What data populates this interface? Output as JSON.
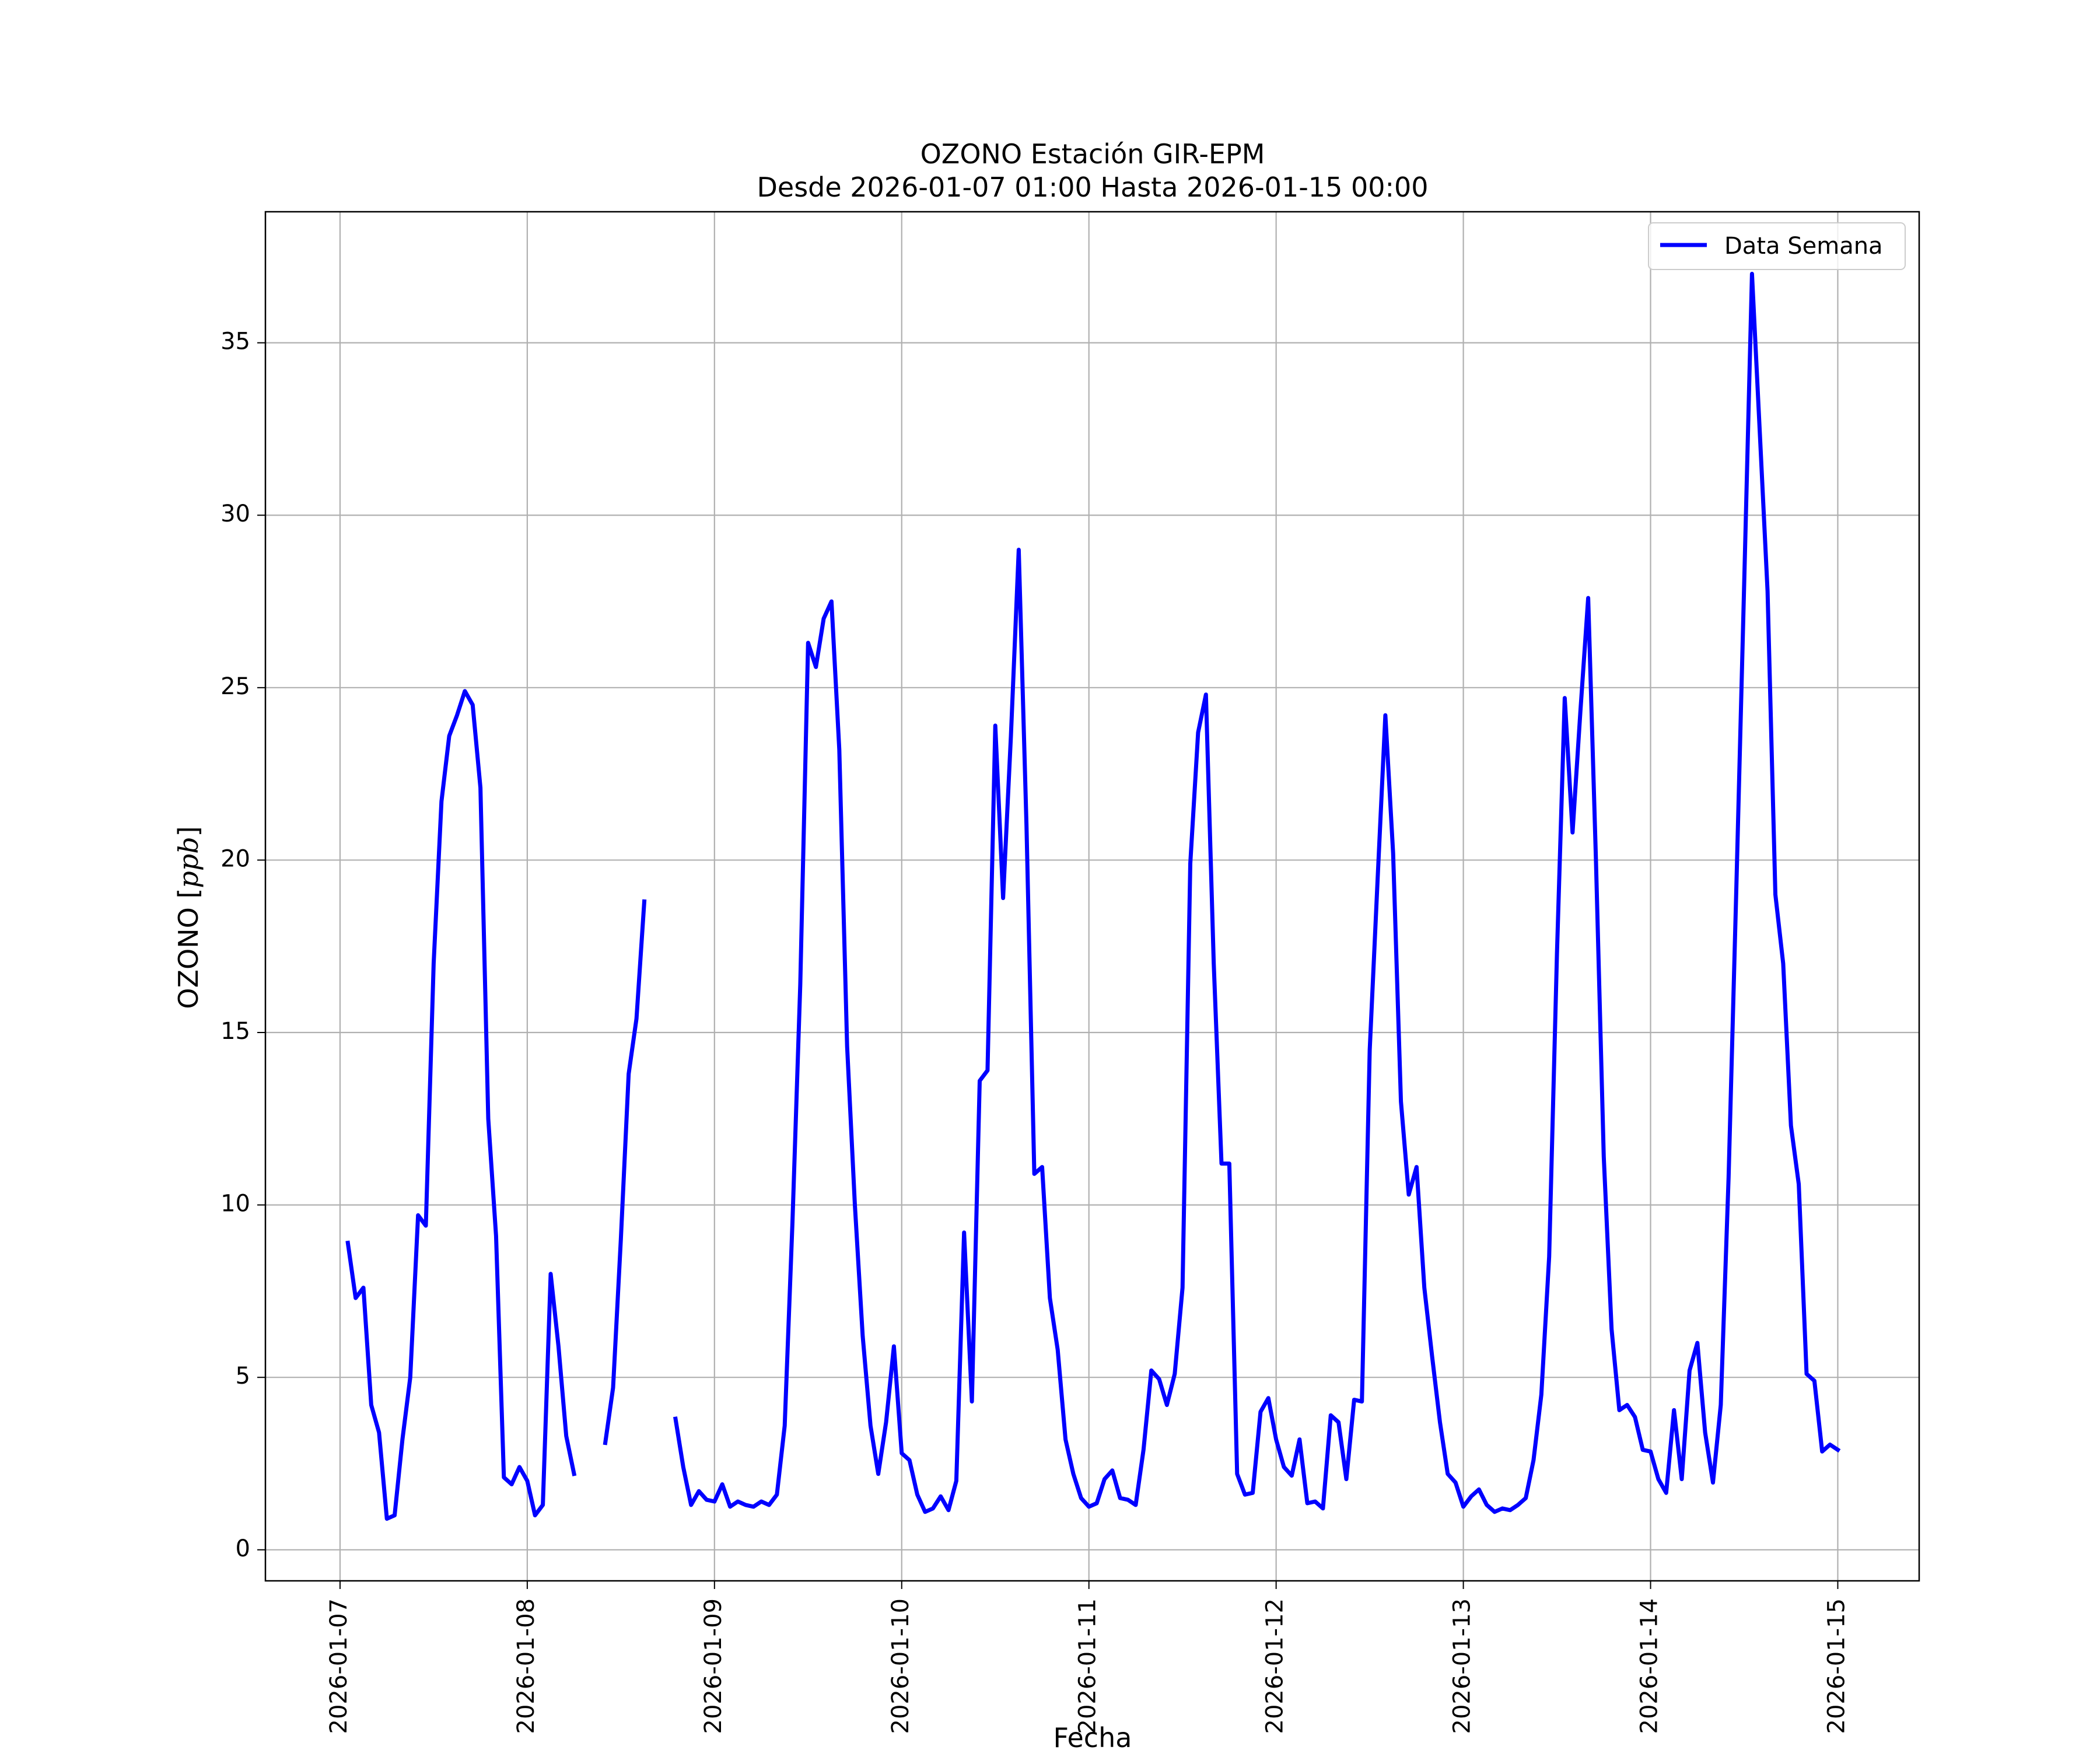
{
  "chart_data": {
    "type": "line",
    "title": "OZONO Estación GIR-EPM",
    "subtitle": "Desde 2026-01-07 01:00 Hasta 2026-01-15 00:00",
    "xlabel": "Fecha",
    "ylabel_text": "OZONO [",
    "ylabel_unit": "ppb",
    "ylabel_close": "]",
    "xlim": [
      "2026-01-06 14:26",
      "2026-01-15 10:26"
    ],
    "ylim": [
      -0.9,
      38.8
    ],
    "grid": true,
    "legend_position": "upper right",
    "x_ticks": [
      "2026-01-07",
      "2026-01-08",
      "2026-01-09",
      "2026-01-10",
      "2026-01-11",
      "2026-01-12",
      "2026-01-13",
      "2026-01-14",
      "2026-01-15"
    ],
    "y_ticks": [
      0,
      5,
      10,
      15,
      20,
      25,
      30,
      35
    ],
    "colors": {
      "line": "#0000ff",
      "grid": "#b0b0b0",
      "axes": "#000000"
    },
    "series": [
      {
        "name": "Data Semana",
        "color": "#0000ff",
        "points": [
          [
            "2026-01-07 01:00",
            8.9
          ],
          [
            "2026-01-07 02:00",
            7.3
          ],
          [
            "2026-01-07 03:00",
            7.6
          ],
          [
            "2026-01-07 04:00",
            4.2
          ],
          [
            "2026-01-07 05:00",
            3.4
          ],
          [
            "2026-01-07 06:00",
            0.9
          ],
          [
            "2026-01-07 07:00",
            1.0
          ],
          [
            "2026-01-07 08:00",
            3.2
          ],
          [
            "2026-01-07 09:00",
            5.0
          ],
          [
            "2026-01-07 10:00",
            9.7
          ],
          [
            "2026-01-07 11:00",
            9.4
          ],
          [
            "2026-01-07 12:00",
            17.0
          ],
          [
            "2026-01-07 13:00",
            21.7
          ],
          [
            "2026-01-07 14:00",
            23.6
          ],
          [
            "2026-01-07 15:00",
            24.2
          ],
          [
            "2026-01-07 16:00",
            24.9
          ],
          [
            "2026-01-07 17:00",
            24.5
          ],
          [
            "2026-01-07 18:00",
            22.1
          ],
          [
            "2026-01-07 19:00",
            12.5
          ],
          [
            "2026-01-07 20:00",
            9.1
          ],
          [
            "2026-01-07 21:00",
            2.1
          ],
          [
            "2026-01-07 22:00",
            1.9
          ],
          [
            "2026-01-07 23:00",
            2.4
          ],
          [
            "2026-01-08 00:00",
            2.0
          ],
          [
            "2026-01-08 01:00",
            1.0
          ],
          [
            "2026-01-08 02:00",
            1.3
          ],
          [
            "2026-01-08 03:00",
            8.0
          ],
          [
            "2026-01-08 04:00",
            5.9
          ],
          [
            "2026-01-08 05:00",
            3.3
          ],
          [
            "2026-01-08 06:00",
            2.2
          ],
          [
            "2026-01-08 07:00",
            null
          ],
          [
            "2026-01-08 08:00",
            null
          ],
          [
            "2026-01-08 09:00",
            null
          ],
          [
            "2026-01-08 10:00",
            3.1
          ],
          [
            "2026-01-08 11:00",
            4.7
          ],
          [
            "2026-01-08 12:00",
            9.0
          ],
          [
            "2026-01-08 13:00",
            13.8
          ],
          [
            "2026-01-08 14:00",
            15.4
          ],
          [
            "2026-01-08 15:00",
            18.8
          ],
          [
            "2026-01-08 16:00",
            null
          ],
          [
            "2026-01-08 17:00",
            null
          ],
          [
            "2026-01-08 18:00",
            null
          ],
          [
            "2026-01-08 19:00",
            null
          ],
          [
            "2026-01-08 20:00",
            null
          ],
          [
            "2026-01-08 21:00",
            null
          ],
          [
            "2026-01-08 22:00",
            null
          ],
          [
            "2026-01-08 23:00",
            null
          ],
          [
            "2026-01-09 00:00",
            null
          ],
          [
            "2026-01-09 01:00",
            null
          ],
          [
            "2026-01-09 02:00",
            null
          ],
          [
            "2026-01-09 03:00",
            null
          ],
          [
            "2026-01-09 04:00",
            null
          ],
          [
            "2026-01-09 05:00",
            null
          ],
          [
            "2026-01-09 06:00",
            null
          ],
          [
            "2026-01-08 19:00",
            3.8
          ],
          [
            "2026-01-08 20:00",
            2.4
          ],
          [
            "2026-01-08 21:00",
            1.3
          ],
          [
            "2026-01-08 22:00",
            1.7
          ],
          [
            "2026-01-08 23:00",
            1.45
          ],
          [
            "2026-01-09 00:00",
            1.4
          ],
          [
            "2026-01-09 01:00",
            1.9
          ],
          [
            "2026-01-09 02:00",
            1.25
          ],
          [
            "2026-01-09 03:00",
            1.4
          ],
          [
            "2026-01-09 04:00",
            1.3
          ],
          [
            "2026-01-09 05:00",
            1.25
          ],
          [
            "2026-01-09 06:00",
            1.4
          ],
          [
            "2026-01-09 07:00",
            1.3
          ],
          [
            "2026-01-09 08:00",
            1.6
          ],
          [
            "2026-01-09 09:00",
            3.6
          ],
          [
            "2026-01-09 10:00",
            9.5
          ],
          [
            "2026-01-09 11:00",
            16.4
          ],
          [
            "2026-01-09 12:00",
            26.3
          ],
          [
            "2026-01-09 13:00",
            25.6
          ],
          [
            "2026-01-09 14:00",
            27.0
          ],
          [
            "2026-01-09 15:00",
            27.5
          ],
          [
            "2026-01-09 16:00",
            23.2
          ],
          [
            "2026-01-09 17:00",
            14.6
          ],
          [
            "2026-01-09 18:00",
            10.0
          ],
          [
            "2026-01-09 19:00",
            6.2
          ],
          [
            "2026-01-09 20:00",
            3.6
          ],
          [
            "2026-01-09 21:00",
            2.2
          ],
          [
            "2026-01-09 22:00",
            3.7
          ],
          [
            "2026-01-09 23:00",
            5.9
          ],
          [
            "2026-01-10 00:00",
            2.8
          ],
          [
            "2026-01-10 01:00",
            2.6
          ],
          [
            "2026-01-10 02:00",
            1.6
          ],
          [
            "2026-01-10 03:00",
            1.1
          ],
          [
            "2026-01-10 04:00",
            1.2
          ],
          [
            "2026-01-10 05:00",
            1.55
          ],
          [
            "2026-01-10 06:00",
            1.15
          ],
          [
            "2026-01-10 07:00",
            2.0
          ],
          [
            "2026-01-10 08:00",
            9.2
          ],
          [
            "2026-01-10 09:00",
            4.3
          ],
          [
            "2026-01-10 10:00",
            13.6
          ],
          [
            "2026-01-10 11:00",
            13.9
          ],
          [
            "2026-01-10 12:00",
            23.9
          ],
          [
            "2026-01-10 13:00",
            18.9
          ],
          [
            "2026-01-10 14:00",
            23.6
          ],
          [
            "2026-01-10 15:00",
            29.0
          ],
          [
            "2026-01-10 16:00",
            21.0
          ],
          [
            "2026-01-10 17:00",
            10.9
          ],
          [
            "2026-01-10 18:00",
            11.1
          ],
          [
            "2026-01-10 19:00",
            7.3
          ],
          [
            "2026-01-10 20:00",
            5.8
          ],
          [
            "2026-01-10 21:00",
            3.2
          ],
          [
            "2026-01-10 22:00",
            2.2
          ],
          [
            "2026-01-10 23:00",
            1.5
          ],
          [
            "2026-01-11 00:00",
            1.25
          ],
          [
            "2026-01-11 01:00",
            1.35
          ],
          [
            "2026-01-11 02:00",
            2.05
          ],
          [
            "2026-01-11 03:00",
            2.3
          ],
          [
            "2026-01-11 04:00",
            1.5
          ],
          [
            "2026-01-11 05:00",
            1.45
          ],
          [
            "2026-01-11 06:00",
            1.3
          ],
          [
            "2026-01-11 07:00",
            2.9
          ],
          [
            "2026-01-11 08:00",
            5.2
          ],
          [
            "2026-01-11 09:00",
            4.95
          ],
          [
            "2026-01-11 10:00",
            4.2
          ],
          [
            "2026-01-11 11:00",
            5.1
          ],
          [
            "2026-01-11 12:00",
            7.6
          ],
          [
            "2026-01-11 13:00",
            19.9
          ],
          [
            "2026-01-11 14:00",
            23.7
          ],
          [
            "2026-01-11 15:00",
            24.8
          ],
          [
            "2026-01-11 16:00",
            17.0
          ],
          [
            "2026-01-11 17:00",
            11.2
          ],
          [
            "2026-01-11 18:00",
            11.2
          ],
          [
            "2026-01-11 19:00",
            2.2
          ],
          [
            "2026-01-11 20:00",
            1.6
          ],
          [
            "2026-01-11 21:00",
            1.65
          ],
          [
            "2026-01-11 22:00",
            4.0
          ],
          [
            "2026-01-11 23:00",
            4.4
          ],
          [
            "2026-01-12 00:00",
            3.2
          ],
          [
            "2026-01-12 01:00",
            2.4
          ],
          [
            "2026-01-12 02:00",
            2.15
          ],
          [
            "2026-01-12 03:00",
            3.2
          ],
          [
            "2026-01-12 04:00",
            1.35
          ],
          [
            "2026-01-12 05:00",
            1.4
          ],
          [
            "2026-01-12 06:00",
            1.2
          ],
          [
            "2026-01-12 07:00",
            3.9
          ],
          [
            "2026-01-12 08:00",
            3.7
          ],
          [
            "2026-01-12 09:00",
            2.05
          ],
          [
            "2026-01-12 10:00",
            4.35
          ],
          [
            "2026-01-12 11:00",
            4.3
          ],
          [
            "2026-01-12 12:00",
            14.5
          ],
          [
            "2026-01-12 13:00",
            19.4
          ],
          [
            "2026-01-12 14:00",
            24.2
          ],
          [
            "2026-01-12 15:00",
            20.2
          ],
          [
            "2026-01-12 16:00",
            13.0
          ],
          [
            "2026-01-12 17:00",
            10.3
          ],
          [
            "2026-01-12 18:00",
            11.1
          ],
          [
            "2026-01-12 19:00",
            7.6
          ],
          [
            "2026-01-12 20:00",
            5.6
          ],
          [
            "2026-01-12 21:00",
            3.7
          ],
          [
            "2026-01-12 22:00",
            2.2
          ],
          [
            "2026-01-12 23:00",
            1.95
          ],
          [
            "2026-01-13 00:00",
            1.25
          ],
          [
            "2026-01-13 01:00",
            1.55
          ],
          [
            "2026-01-13 02:00",
            1.75
          ],
          [
            "2026-01-13 03:00",
            1.3
          ],
          [
            "2026-01-13 04:00",
            1.1
          ],
          [
            "2026-01-13 05:00",
            1.2
          ],
          [
            "2026-01-13 06:00",
            1.15
          ],
          [
            "2026-01-13 07:00",
            1.3
          ],
          [
            "2026-01-13 08:00",
            1.5
          ],
          [
            "2026-01-13 09:00",
            2.6
          ],
          [
            "2026-01-13 10:00",
            4.5
          ],
          [
            "2026-01-13 11:00",
            8.5
          ],
          [
            "2026-01-13 12:00",
            17.3
          ],
          [
            "2026-01-13 13:00",
            24.7
          ],
          [
            "2026-01-13 14:00",
            20.8
          ],
          [
            "2026-01-13 15:00",
            24.3
          ],
          [
            "2026-01-13 16:00",
            27.6
          ],
          [
            "2026-01-13 17:00",
            20.0
          ],
          [
            "2026-01-13 18:00",
            11.4
          ],
          [
            "2026-01-13 19:00",
            6.4
          ],
          [
            "2026-01-13 20:00",
            4.05
          ],
          [
            "2026-01-13 21:00",
            4.2
          ],
          [
            "2026-01-13 22:00",
            3.85
          ],
          [
            "2026-01-13 23:00",
            2.9
          ],
          [
            "2026-01-14 00:00",
            2.85
          ],
          [
            "2026-01-14 01:00",
            2.05
          ],
          [
            "2026-01-14 02:00",
            1.65
          ],
          [
            "2026-01-14 03:00",
            4.05
          ],
          [
            "2026-01-14 04:00",
            2.05
          ],
          [
            "2026-01-14 05:00",
            5.2
          ],
          [
            "2026-01-14 06:00",
            6.0
          ],
          [
            "2026-01-14 07:00",
            3.4
          ],
          [
            "2026-01-14 08:00",
            1.95
          ],
          [
            "2026-01-14 09:00",
            4.2
          ],
          [
            "2026-01-14 10:00",
            10.8
          ],
          [
            "2026-01-14 11:00",
            19.2
          ],
          [
            "2026-01-14 12:00",
            28.0
          ],
          [
            "2026-01-14 13:00",
            37.0
          ],
          [
            "2026-01-14 14:00",
            32.4
          ],
          [
            "2026-01-14 15:00",
            27.8
          ],
          [
            "2026-01-14 16:00",
            19.0
          ],
          [
            "2026-01-14 17:00",
            17.0
          ],
          [
            "2026-01-14 18:00",
            12.3
          ],
          [
            "2026-01-14 19:00",
            10.6
          ],
          [
            "2026-01-14 20:00",
            5.1
          ],
          [
            "2026-01-14 21:00",
            4.9
          ],
          [
            "2026-01-14 22:00",
            2.85
          ],
          [
            "2026-01-14 23:00",
            3.05
          ],
          [
            "2026-01-15 00:00",
            2.9
          ]
        ]
      }
    ]
  }
}
